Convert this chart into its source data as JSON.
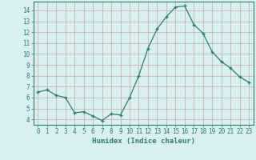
{
  "x": [
    0,
    1,
    2,
    3,
    4,
    5,
    6,
    7,
    8,
    9,
    10,
    11,
    12,
    13,
    14,
    15,
    16,
    17,
    18,
    19,
    20,
    21,
    22,
    23
  ],
  "y": [
    6.5,
    6.7,
    6.2,
    6.0,
    4.6,
    4.7,
    4.3,
    3.9,
    4.5,
    4.4,
    6.0,
    8.0,
    10.5,
    12.3,
    13.4,
    14.3,
    14.4,
    12.7,
    11.9,
    10.2,
    9.3,
    8.7,
    7.9,
    7.4
  ],
  "line_color": "#2e7d6e",
  "marker": "+",
  "marker_size": 3.5,
  "bg_color": "#d8f0f0",
  "grid_color": "#c8a8a8",
  "xlabel": "Humidex (Indice chaleur)",
  "xlim": [
    -0.5,
    23.5
  ],
  "ylim": [
    3.5,
    14.8
  ],
  "yticks": [
    4,
    5,
    6,
    7,
    8,
    9,
    10,
    11,
    12,
    13,
    14
  ],
  "xticks": [
    0,
    1,
    2,
    3,
    4,
    5,
    6,
    7,
    8,
    9,
    10,
    11,
    12,
    13,
    14,
    15,
    16,
    17,
    18,
    19,
    20,
    21,
    22,
    23
  ],
  "tick_color": "#2e7d6e",
  "label_color": "#2e7d6e",
  "tick_fontsize": 5.5,
  "xlabel_fontsize": 6.5
}
